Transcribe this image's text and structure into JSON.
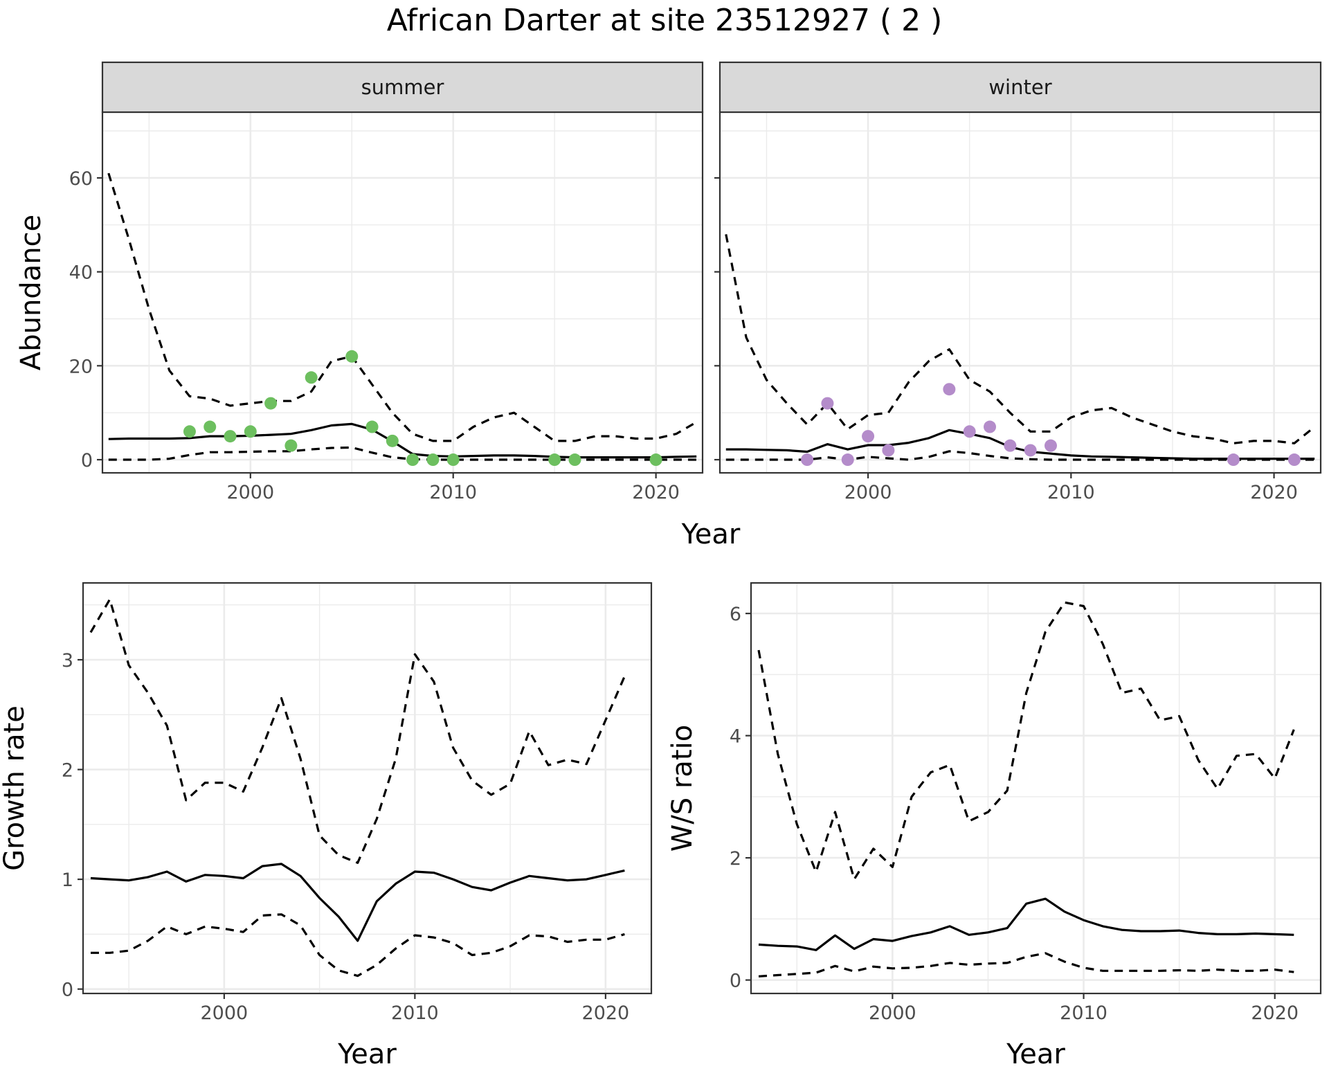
{
  "title": "African Darter at site 23512927 ( 2 )",
  "colors": {
    "summer_points": "#6dbf5f",
    "winter_points": "#b48cca",
    "line": "#000000",
    "grid": "#ebebeb"
  },
  "chart_data": [
    {
      "type": "line",
      "panel": "summer",
      "strip_label": "summer",
      "xlabel": "Year",
      "ylabel": "Abundance",
      "xlim": [
        1992.7,
        2022.3
      ],
      "ylim": [
        -2.8,
        74
      ],
      "xticks": [
        2000,
        2010,
        2020
      ],
      "yticks": [
        0,
        20,
        40,
        60
      ],
      "series": [
        {
          "role": "mean",
          "style": "solid",
          "x": [
            1993,
            1994,
            1995,
            1996,
            1997,
            1998,
            1999,
            2000,
            2001,
            2002,
            2003,
            2004,
            2005,
            2006,
            2007,
            2008,
            2009,
            2010,
            2011,
            2012,
            2013,
            2014,
            2015,
            2016,
            2017,
            2018,
            2019,
            2020,
            2021,
            2022
          ],
          "y": [
            4.4,
            4.5,
            4.5,
            4.5,
            4.6,
            5,
            5,
            5.1,
            5.3,
            5.5,
            6.3,
            7.3,
            7.6,
            6.4,
            3.9,
            1.2,
            0.8,
            0.7,
            0.8,
            0.9,
            0.9,
            0.8,
            0.6,
            0.5,
            0.5,
            0.5,
            0.5,
            0.5,
            0.6,
            0.7
          ]
        },
        {
          "role": "upper",
          "style": "dashed",
          "x": [
            1993,
            1994,
            1995,
            1996,
            1997,
            1998,
            1999,
            2000,
            2001,
            2002,
            2003,
            2004,
            2005,
            2006,
            2007,
            2008,
            2009,
            2010,
            2011,
            2012,
            2013,
            2014,
            2015,
            2016,
            2017,
            2018,
            2019,
            2020,
            2021,
            2022
          ],
          "y": [
            61,
            47,
            32,
            19,
            13.5,
            13,
            11.5,
            12,
            12.5,
            12.5,
            14.5,
            21,
            22,
            16,
            10,
            5.5,
            4,
            4,
            7,
            9,
            10,
            7,
            4,
            4,
            5,
            5,
            4.5,
            4.5,
            5.5,
            8
          ]
        },
        {
          "role": "lower",
          "style": "dashed",
          "x": [
            1993,
            1994,
            1995,
            1996,
            1997,
            1998,
            1999,
            2000,
            2001,
            2002,
            2003,
            2004,
            2005,
            2006,
            2007,
            2008,
            2009,
            2010,
            2011,
            2012,
            2013,
            2014,
            2015,
            2016,
            2017,
            2018,
            2019,
            2020,
            2021,
            2022
          ],
          "y": [
            0,
            0,
            0,
            0.2,
            1,
            1.6,
            1.6,
            1.7,
            1.8,
            1.8,
            2.2,
            2.5,
            2.6,
            1.5,
            0.5,
            0.1,
            0,
            0,
            0,
            0,
            0,
            0,
            0,
            0,
            0,
            0,
            0,
            0,
            0,
            0
          ]
        }
      ],
      "points": {
        "x": [
          1997,
          1998,
          1999,
          2000,
          2001,
          2002,
          2003,
          2005,
          2006,
          2007,
          2008,
          2009,
          2010,
          2015,
          2016,
          2020
        ],
        "y": [
          6,
          7,
          5,
          6,
          12,
          3,
          17.5,
          22,
          7,
          4,
          0,
          0,
          0,
          0,
          0,
          0
        ]
      }
    },
    {
      "type": "line",
      "panel": "winter",
      "strip_label": "winter",
      "xlabel": "Year",
      "ylabel": "Abundance",
      "xlim": [
        1992.7,
        2022.3
      ],
      "ylim": [
        -2.8,
        74
      ],
      "xticks": [
        2000,
        2010,
        2020
      ],
      "yticks": [
        0,
        20,
        40,
        60
      ],
      "series": [
        {
          "role": "mean",
          "style": "solid",
          "x": [
            1993,
            1994,
            1995,
            1996,
            1997,
            1998,
            1999,
            2000,
            2001,
            2002,
            2003,
            2004,
            2005,
            2006,
            2007,
            2008,
            2009,
            2010,
            2011,
            2012,
            2013,
            2014,
            2015,
            2016,
            2017,
            2018,
            2019,
            2020,
            2021,
            2022
          ],
          "y": [
            2.2,
            2.2,
            2.1,
            2,
            1.7,
            3.3,
            2.2,
            3.1,
            3.1,
            3.6,
            4.6,
            6.3,
            5.5,
            4.6,
            2.7,
            1.7,
            1.3,
            0.9,
            0.7,
            0.6,
            0.5,
            0.4,
            0.3,
            0.2,
            0.2,
            0.2,
            0.2,
            0.2,
            0.2,
            0.2
          ]
        },
        {
          "role": "upper",
          "style": "dashed",
          "x": [
            1993,
            1994,
            1995,
            1996,
            1997,
            1998,
            1999,
            2000,
            2001,
            2002,
            2003,
            2004,
            2005,
            2006,
            2007,
            2008,
            2009,
            2010,
            2011,
            2012,
            2013,
            2014,
            2015,
            2016,
            2017,
            2018,
            2019,
            2020,
            2021,
            2022
          ],
          "y": [
            48,
            26,
            17,
            12,
            7.5,
            12,
            6.5,
            9.5,
            10,
            16.5,
            21,
            23.5,
            17,
            14.5,
            10,
            6,
            6,
            9,
            10.5,
            11,
            9,
            7.5,
            6,
            5,
            4.5,
            3.5,
            4,
            4,
            3.5,
            7
          ]
        },
        {
          "role": "lower",
          "style": "dashed",
          "x": [
            1993,
            1994,
            1995,
            1996,
            1997,
            1998,
            1999,
            2000,
            2001,
            2002,
            2003,
            2004,
            2005,
            2006,
            2007,
            2008,
            2009,
            2010,
            2011,
            2012,
            2013,
            2014,
            2015,
            2016,
            2017,
            2018,
            2019,
            2020,
            2021,
            2022
          ],
          "y": [
            0,
            0,
            0,
            0,
            0,
            0.5,
            0,
            0.6,
            0.3,
            0,
            0.6,
            1.8,
            1.4,
            0.8,
            0.3,
            0.1,
            0,
            0,
            0,
            0,
            0,
            0,
            0,
            0,
            0,
            0,
            0,
            0,
            0,
            0
          ]
        }
      ],
      "points": {
        "x": [
          1997,
          1998,
          1999,
          2000,
          2001,
          2004,
          2005,
          2006,
          2007,
          2008,
          2009,
          2018,
          2021
        ],
        "y": [
          0,
          12,
          0,
          5,
          2,
          15,
          6,
          7,
          3,
          2,
          3,
          0,
          0
        ]
      }
    },
    {
      "type": "line",
      "panel": "growth",
      "xlabel": "Year",
      "ylabel": "Growth rate",
      "xlim": [
        1992.6,
        2022.4
      ],
      "ylim": [
        -0.04,
        3.7
      ],
      "xticks": [
        2000,
        2010,
        2020
      ],
      "yticks": [
        0,
        1,
        2,
        3
      ],
      "series": [
        {
          "role": "mean",
          "style": "solid",
          "x": [
            1993,
            1994,
            1995,
            1996,
            1997,
            1998,
            1999,
            2000,
            2001,
            2002,
            2003,
            2004,
            2005,
            2006,
            2007,
            2008,
            2009,
            2010,
            2011,
            2012,
            2013,
            2014,
            2015,
            2016,
            2017,
            2018,
            2019,
            2020,
            2021
          ],
          "y": [
            1.01,
            1,
            0.99,
            1.02,
            1.07,
            0.98,
            1.04,
            1.03,
            1.01,
            1.12,
            1.14,
            1.03,
            0.83,
            0.66,
            0.44,
            0.8,
            0.96,
            1.07,
            1.06,
            1,
            0.93,
            0.9,
            0.97,
            1.03,
            1.01,
            0.99,
            1,
            1.04,
            1.08
          ]
        },
        {
          "role": "upper",
          "style": "dashed",
          "x": [
            1993,
            1994,
            1995,
            1996,
            1997,
            1998,
            1999,
            2000,
            2001,
            2002,
            2003,
            2004,
            2005,
            2006,
            2007,
            2008,
            2009,
            2010,
            2011,
            2012,
            2013,
            2014,
            2015,
            2016,
            2017,
            2018,
            2019,
            2020,
            2021
          ],
          "y": [
            3.25,
            3.55,
            2.95,
            2.7,
            2.4,
            1.72,
            1.88,
            1.88,
            1.8,
            2.2,
            2.65,
            2.1,
            1.4,
            1.22,
            1.15,
            1.55,
            2.1,
            3.05,
            2.8,
            2.2,
            1.9,
            1.77,
            1.87,
            2.35,
            2.04,
            2.09,
            2.05,
            2.45,
            2.85
          ]
        },
        {
          "role": "lower",
          "style": "dashed",
          "x": [
            1993,
            1994,
            1995,
            1996,
            1997,
            1998,
            1999,
            2000,
            2001,
            2002,
            2003,
            2004,
            2005,
            2006,
            2007,
            2008,
            2009,
            2010,
            2011,
            2012,
            2013,
            2014,
            2015,
            2016,
            2017,
            2018,
            2019,
            2020,
            2021
          ],
          "y": [
            0.33,
            0.33,
            0.35,
            0.44,
            0.57,
            0.5,
            0.57,
            0.55,
            0.52,
            0.67,
            0.68,
            0.58,
            0.31,
            0.17,
            0.12,
            0.22,
            0.37,
            0.49,
            0.47,
            0.42,
            0.31,
            0.33,
            0.39,
            0.49,
            0.48,
            0.43,
            0.45,
            0.45,
            0.5
          ]
        }
      ]
    },
    {
      "type": "line",
      "panel": "ws_ratio",
      "xlabel": "Year",
      "ylabel": "W/S ratio",
      "xlim": [
        1992.6,
        2022.4
      ],
      "ylim": [
        -0.22,
        6.5
      ],
      "xticks": [
        2000,
        2010,
        2020
      ],
      "yticks": [
        0,
        2,
        4,
        6
      ],
      "series": [
        {
          "role": "mean",
          "style": "solid",
          "x": [
            1993,
            1994,
            1995,
            1996,
            1997,
            1998,
            1999,
            2000,
            2001,
            2002,
            2003,
            2004,
            2005,
            2006,
            2007,
            2008,
            2009,
            2010,
            2011,
            2012,
            2013,
            2014,
            2015,
            2016,
            2017,
            2018,
            2019,
            2020,
            2021
          ],
          "y": [
            0.58,
            0.56,
            0.55,
            0.49,
            0.73,
            0.51,
            0.67,
            0.64,
            0.72,
            0.78,
            0.88,
            0.74,
            0.78,
            0.85,
            1.25,
            1.33,
            1.12,
            0.98,
            0.88,
            0.82,
            0.8,
            0.8,
            0.81,
            0.77,
            0.75,
            0.75,
            0.76,
            0.75,
            0.74
          ]
        },
        {
          "role": "upper",
          "style": "dashed",
          "x": [
            1993,
            1994,
            1995,
            1996,
            1997,
            1998,
            1999,
            2000,
            2001,
            2002,
            2003,
            2004,
            2005,
            2006,
            2007,
            2008,
            2009,
            2010,
            2011,
            2012,
            2013,
            2014,
            2015,
            2016,
            2017,
            2018,
            2019,
            2020,
            2021
          ],
          "y": [
            5.4,
            3.7,
            2.55,
            1.77,
            2.75,
            1.65,
            2.15,
            1.85,
            3,
            3.4,
            3.52,
            2.6,
            2.75,
            3.1,
            4.7,
            5.7,
            6.18,
            6.12,
            5.5,
            4.7,
            4.77,
            4.25,
            4.32,
            3.6,
            3.13,
            3.67,
            3.7,
            3.3,
            4.1
          ]
        },
        {
          "role": "lower",
          "style": "dashed",
          "x": [
            1993,
            1994,
            1995,
            1996,
            1997,
            1998,
            1999,
            2000,
            2001,
            2002,
            2003,
            2004,
            2005,
            2006,
            2007,
            2008,
            2009,
            2010,
            2011,
            2012,
            2013,
            2014,
            2015,
            2016,
            2017,
            2018,
            2019,
            2020,
            2021
          ],
          "y": [
            0.06,
            0.08,
            0.1,
            0.12,
            0.23,
            0.14,
            0.22,
            0.19,
            0.2,
            0.23,
            0.28,
            0.25,
            0.27,
            0.28,
            0.38,
            0.44,
            0.3,
            0.2,
            0.15,
            0.15,
            0.15,
            0.15,
            0.16,
            0.15,
            0.17,
            0.15,
            0.15,
            0.17,
            0.13
          ]
        }
      ]
    }
  ]
}
